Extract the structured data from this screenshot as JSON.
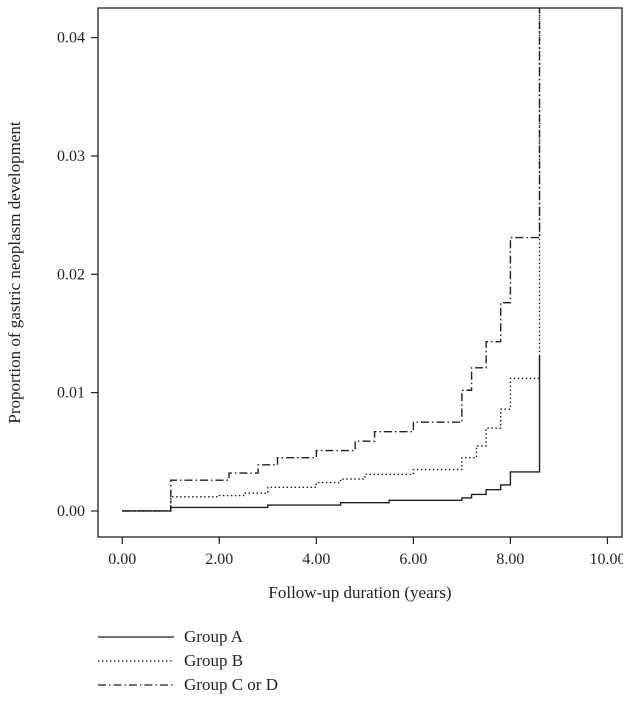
{
  "chart_data": {
    "type": "line",
    "xlabel": "Follow-up duration (years)",
    "ylabel": "Proportion of gastric neoplasm development",
    "xlim": [
      -0.5,
      10.3
    ],
    "ylim": [
      -0.0022,
      0.0425
    ],
    "x_ticks": [
      0,
      2,
      4,
      6,
      8,
      10
    ],
    "x_tick_labels": [
      "0.00",
      "2.00",
      "4.00",
      "6.00",
      "8.00",
      "10.00"
    ],
    "y_ticks": [
      0,
      0.01,
      0.02,
      0.03,
      0.04
    ],
    "y_tick_labels": [
      "0.00",
      "0.01",
      "0.02",
      "0.03",
      "0.04"
    ],
    "step": true,
    "legend_position": "below",
    "series": [
      {
        "name": "Group A",
        "dash": "solid",
        "color": "#231f20",
        "points": [
          [
            0,
            0
          ],
          [
            1.0,
            0.0003
          ],
          [
            3.0,
            0.0005
          ],
          [
            4.5,
            0.0007
          ],
          [
            5.5,
            0.0009
          ],
          [
            7.0,
            0.0011
          ],
          [
            7.2,
            0.0014
          ],
          [
            7.5,
            0.0018
          ],
          [
            7.8,
            0.0022
          ],
          [
            8.0,
            0.0027
          ],
          [
            8.0,
            0.0033
          ],
          [
            8.6,
            0.0131
          ]
        ]
      },
      {
        "name": "Group B",
        "dash": "dotted",
        "color": "#231f20",
        "points": [
          [
            0,
            0
          ],
          [
            1.0,
            0.0012
          ],
          [
            2.0,
            0.0013
          ],
          [
            2.5,
            0.0015
          ],
          [
            3.0,
            0.002
          ],
          [
            4.0,
            0.0024
          ],
          [
            4.5,
            0.0027
          ],
          [
            5.0,
            0.0031
          ],
          [
            6.0,
            0.0035
          ],
          [
            7.0,
            0.0045
          ],
          [
            7.3,
            0.0055
          ],
          [
            7.5,
            0.007
          ],
          [
            7.8,
            0.0086
          ],
          [
            8.0,
            0.0112
          ],
          [
            8.6,
            0.0425
          ]
        ]
      },
      {
        "name": "Group C or D",
        "dash": "dashdot",
        "color": "#231f20",
        "points": [
          [
            0,
            0
          ],
          [
            1.0,
            0.0026
          ],
          [
            2.2,
            0.0032
          ],
          [
            2.8,
            0.0039
          ],
          [
            3.2,
            0.0045
          ],
          [
            4.0,
            0.0051
          ],
          [
            4.8,
            0.0059
          ],
          [
            5.2,
            0.0067
          ],
          [
            6.0,
            0.0075
          ],
          [
            7.0,
            0.0102
          ],
          [
            7.2,
            0.0121
          ],
          [
            7.5,
            0.0143
          ],
          [
            7.8,
            0.0176
          ],
          [
            8.0,
            0.0231
          ],
          [
            8.6,
            0.0425
          ]
        ]
      }
    ]
  }
}
